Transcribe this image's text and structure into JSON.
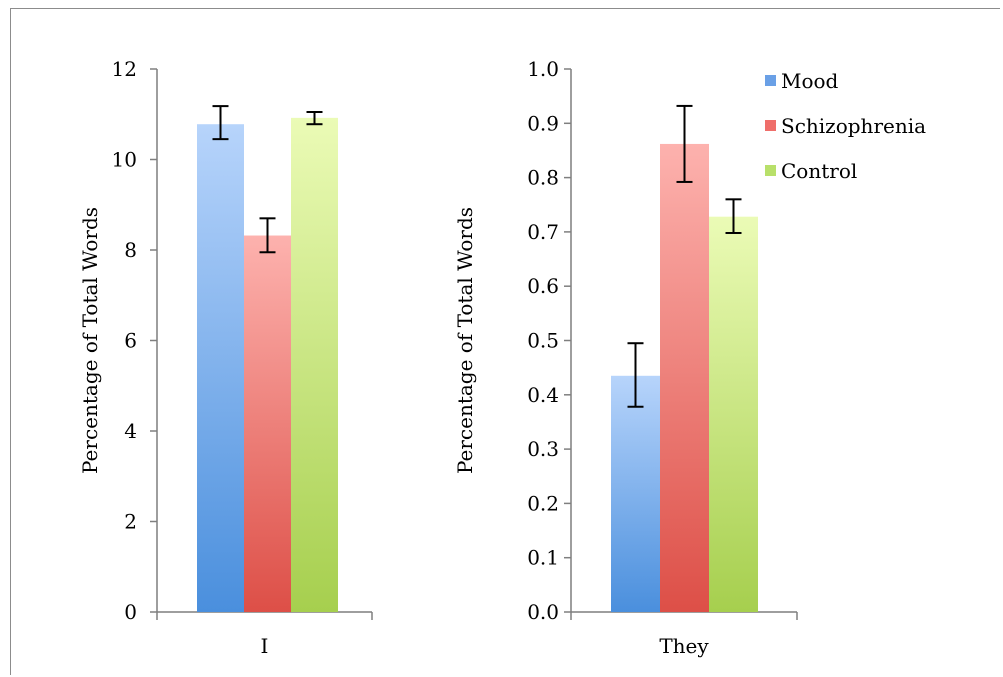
{
  "legend": {
    "placement": "top-right",
    "items": [
      {
        "label": "Mood",
        "color": "#6aa0e6"
      },
      {
        "label": "Schizophrenia",
        "color": "#ef6e6a"
      },
      {
        "label": "Control",
        "color": "#b8e06a"
      }
    ]
  },
  "chart_data": [
    {
      "type": "bar",
      "categories": [
        "I"
      ],
      "ylabel": "Percentage of Total Words",
      "ylim": [
        0,
        12
      ],
      "yticks": [
        "0",
        "2",
        "4",
        "6",
        "8",
        "10",
        "12"
      ],
      "grid": false,
      "series": [
        {
          "name": "Mood",
          "values": [
            10.78
          ],
          "error_low": [
            10.45
          ],
          "error_high": [
            11.18
          ]
        },
        {
          "name": "Schizophrenia",
          "values": [
            8.32
          ],
          "error_low": [
            7.95
          ],
          "error_high": [
            8.7
          ]
        },
        {
          "name": "Control",
          "values": [
            10.92
          ],
          "error_low": [
            10.78
          ],
          "error_high": [
            11.05
          ]
        }
      ]
    },
    {
      "type": "bar",
      "categories": [
        "They"
      ],
      "ylabel": "Percentage of Total Words",
      "ylim": [
        0,
        1.0
      ],
      "yticks": [
        "0.0",
        "0.1",
        "0.2",
        "0.3",
        "0.4",
        "0.5",
        "0.6",
        "0.7",
        "0.8",
        "0.9",
        "1.0"
      ],
      "grid": false,
      "series": [
        {
          "name": "Mood",
          "values": [
            0.435
          ],
          "error_low": [
            0.378
          ],
          "error_high": [
            0.495
          ]
        },
        {
          "name": "Schizophrenia",
          "values": [
            0.862
          ],
          "error_low": [
            0.792
          ],
          "error_high": [
            0.932
          ]
        },
        {
          "name": "Control",
          "values": [
            0.728
          ],
          "error_low": [
            0.698
          ],
          "error_high": [
            0.76
          ]
        }
      ]
    }
  ]
}
